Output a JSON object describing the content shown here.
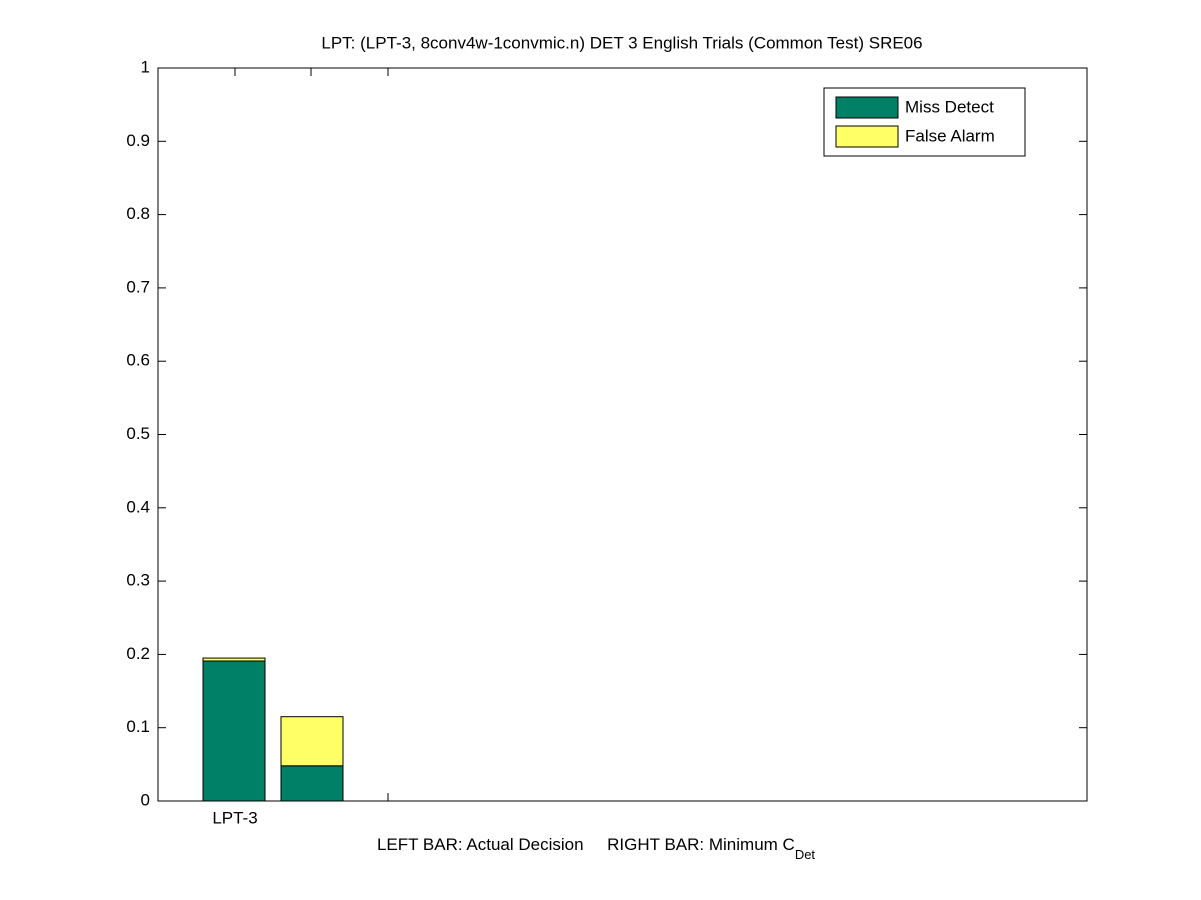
{
  "chart_data": {
    "type": "stacked-bar-pair",
    "title": "LPT: (LPT-3, 8conv4w-1convmic.n) DET 3 English Trials (Common Test) SRE06",
    "xlabel": {
      "text": "LEFT BAR: Actual Decision     RIGHT BAR: Minimum C",
      "subscript": "Det"
    },
    "categories": [
      "LPT-3"
    ],
    "series": [
      {
        "name": "Miss Detect",
        "color": "#008066",
        "values": [
          [
            0.191,
            0.048
          ]
        ]
      },
      {
        "name": "False Alarm",
        "color": "#ffff66",
        "values": [
          [
            0.004,
            0.067
          ]
        ]
      }
    ],
    "ylim": [
      0,
      1
    ],
    "yticks": [
      0,
      0.1,
      0.2,
      0.3,
      0.4,
      0.5,
      0.6,
      0.7,
      0.8,
      0.9,
      1
    ],
    "legend": "top-right"
  }
}
